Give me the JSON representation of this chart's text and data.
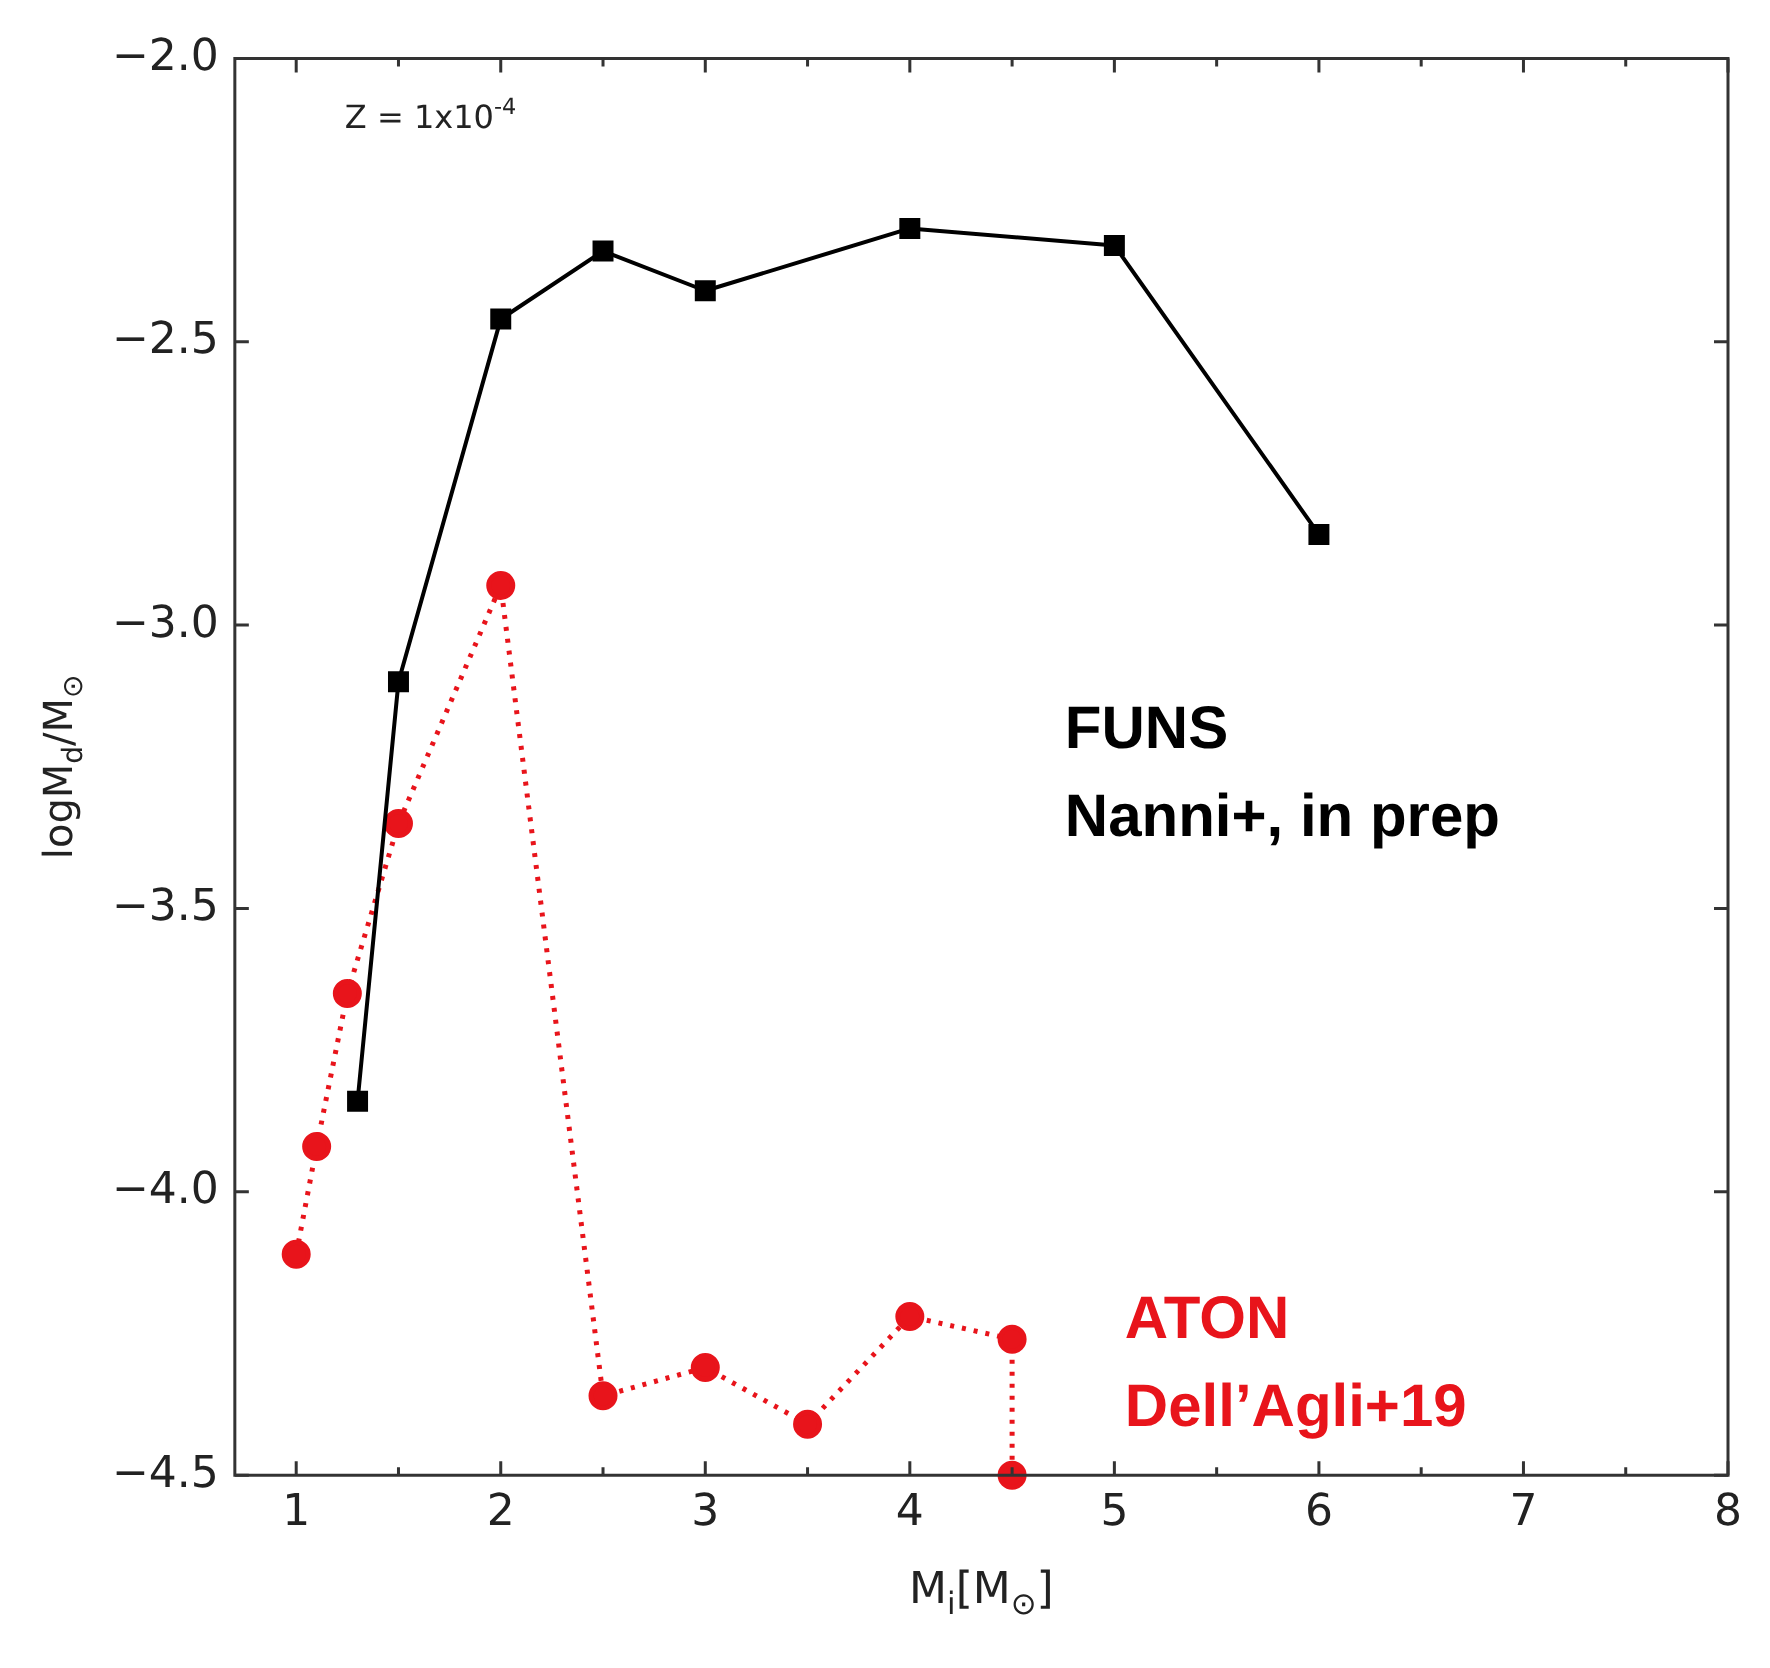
{
  "chart_data": {
    "type": "line",
    "xlabel": "M$_{i}$[M$_{⊙}$]",
    "ylabel": "logM$_{d}$/M$_{⊙}$",
    "annotations": [
      "Z = 1x10$^{-4}$"
    ],
    "xlim": [
      0.7,
      8
    ],
    "xticks": [
      1,
      {
        "value": 1.5,
        "label": null
      },
      2,
      {
        "value": 2.5,
        "label": null
      },
      3,
      {
        "value": 3.5,
        "label": null
      },
      4,
      {
        "value": 4.5,
        "label": null
      },
      5,
      {
        "value": 5.5,
        "label": null
      },
      6,
      {
        "value": 6.5,
        "label": null
      },
      7,
      {
        "value": 7.5,
        "label": null
      },
      8
    ],
    "ylim": [
      -4.5,
      -2.0
    ],
    "yticks": [
      {
        "value": -4.5,
        "label": "−4.5"
      },
      {
        "value": -4.0,
        "label": "−4.0"
      },
      {
        "value": -3.5,
        "label": "−3.5"
      },
      {
        "value": -3.0,
        "label": "−3.0"
      },
      {
        "value": -2.5,
        "label": "−2.5"
      },
      {
        "value": -2.0,
        "label": "−2.0"
      }
    ],
    "grid": false,
    "legend": "right",
    "series": [
      {
        "name": "FUNS\nNanni+, in prep",
        "color": "#000000",
        "marker": "square",
        "line_style": "solid",
        "x": [
          1.3,
          1.5,
          2,
          2.5,
          3,
          4,
          5,
          6
        ],
        "values": [
          -3.84,
          -3.1,
          -2.46,
          -2.34,
          -2.41,
          -2.3,
          -2.33,
          -2.84
        ]
      },
      {
        "name": "ATON\nDell’Agli+19",
        "color": "#e8141b",
        "marker": "circle",
        "line_style": "dotted",
        "x": [
          1,
          1.1,
          1.25,
          1.5,
          2,
          2.5,
          3,
          3.5,
          4,
          4.5,
          4.5
        ],
        "values": [
          -4.11,
          -3.92,
          -3.65,
          -3.35,
          -2.93,
          -4.36,
          -4.31,
          -4.41,
          -4.22,
          -4.26,
          -4.5
        ]
      }
    ]
  }
}
